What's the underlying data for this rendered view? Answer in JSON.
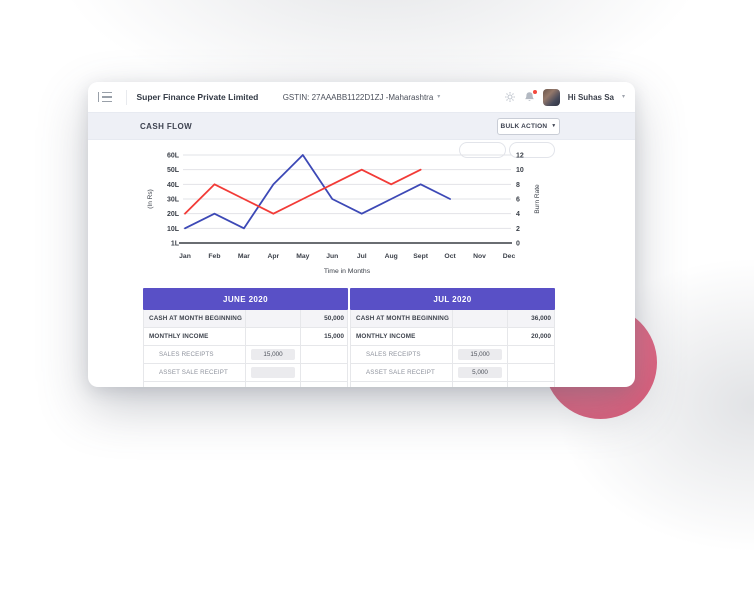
{
  "glyphs": {
    "caret_down_small": "▾",
    "caret_down_filled": "▼"
  },
  "colors": {
    "accent_purple": "#5950c6",
    "chart_blue": "#3d49b6",
    "chart_red": "#f23b37",
    "pink_circle": "#d85674",
    "notification_dot": "#f4483c"
  },
  "header": {
    "company_name": "Super Finance Private Limited",
    "gstin_label": "GSTIN: 27AAABB1122D1ZJ -Maharashtra",
    "user_greeting": "Hi Suhas Sa"
  },
  "toolbar": {
    "section_title": "CASH FLOW",
    "bulk_action_label": "BULK ACTION"
  },
  "chart_data": {
    "type": "line",
    "x": [
      "Jan",
      "Feb",
      "Mar",
      "Apr",
      "May",
      "Jun",
      "Jul",
      "Aug",
      "Sept",
      "Oct",
      "Nov",
      "Dec"
    ],
    "xlabel": "Time in Months",
    "left_axis": {
      "label": "(In Rs)",
      "ticks": [
        "60L",
        "50L",
        "40L",
        "30L",
        "20L",
        "10L",
        "1L"
      ],
      "min": 0,
      "max": 60
    },
    "right_axis": {
      "label": "Burn Rate",
      "ticks": [
        "12",
        "10",
        "8",
        "6",
        "4",
        "2",
        "0"
      ],
      "min": 0,
      "max": 12
    },
    "grid": true,
    "legend": false,
    "series": [
      {
        "name": "cash-in-rs-lakh",
        "axis": "left",
        "color": "#3d49b6",
        "values": [
          10,
          20,
          10,
          40,
          60,
          30,
          20,
          30,
          40,
          30,
          null,
          null
        ]
      },
      {
        "name": "burn-rate",
        "axis": "right",
        "color": "#f23b37",
        "values": [
          4,
          8,
          6,
          4,
          6,
          8,
          10,
          8,
          10,
          null,
          null,
          null
        ]
      }
    ]
  },
  "tables": [
    {
      "month": "JUNE 2020",
      "rows": [
        {
          "label": "CASH AT MONTH BEGINNING",
          "input": null,
          "value": "50,000",
          "emphasis": true
        },
        {
          "label": "MONTHLY INCOME",
          "input": null,
          "value": "15,000",
          "emphasis": true
        },
        {
          "label": "SALES RECEIPTS",
          "input": "15,000",
          "value": "",
          "emphasis": false
        },
        {
          "label": "ASSET SALE RECEIPT",
          "input": "",
          "value": "",
          "emphasis": false
        }
      ]
    },
    {
      "month": "JUL 2020",
      "rows": [
        {
          "label": "CASH AT MONTH BEGINNING",
          "input": null,
          "value": "36,000",
          "emphasis": true
        },
        {
          "label": "MONTHLY INCOME",
          "input": null,
          "value": "20,000",
          "emphasis": true
        },
        {
          "label": "SALES RECEIPTS",
          "input": "15,000",
          "value": "",
          "emphasis": false
        },
        {
          "label": "ASSET SALE RECEIPT",
          "input": "5,000",
          "value": "",
          "emphasis": false
        }
      ]
    }
  ]
}
